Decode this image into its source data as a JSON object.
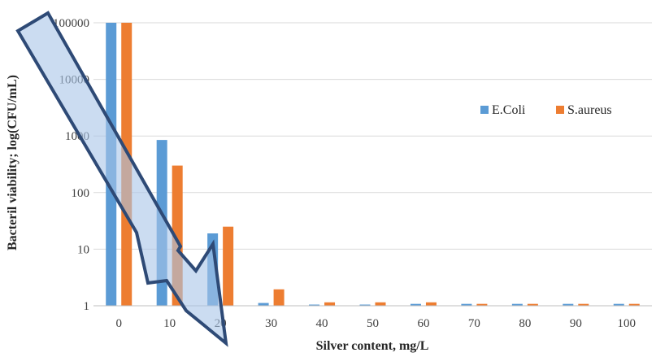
{
  "chart_data": {
    "type": "bar",
    "categories": [
      "0",
      "10",
      "20",
      "30",
      "40",
      "50",
      "60",
      "70",
      "80",
      "90",
      "100"
    ],
    "series": [
      {
        "name": "E.Coli",
        "color": "#5B9BD5",
        "values": [
          100000,
          850,
          19,
          1.12,
          1.05,
          1.05,
          1.08,
          1.08,
          1.08,
          1.08,
          1.08
        ]
      },
      {
        "name": "S.aureus",
        "color": "#ED7D31",
        "values": [
          100000,
          300,
          25,
          1.95,
          1.15,
          1.15,
          1.15,
          1.08,
          1.08,
          1.08,
          1.08
        ]
      }
    ],
    "xlabel": "Silver content, mg/L",
    "ylabel": "Bacteril viability; log(CFU/mL)",
    "yscale": "log",
    "ylim": [
      1,
      100000
    ],
    "yticks": [
      1,
      10,
      100,
      1000,
      10000,
      100000
    ],
    "ytick_labels": [
      "1",
      "10",
      "100",
      "1000",
      "10000",
      "100000"
    ],
    "grid": "horizontal",
    "legend_position": "right",
    "annotation": {
      "type": "arrow",
      "direction": "down-right",
      "fill": "#A9C4E8",
      "stroke": "#2E4A76"
    }
  }
}
